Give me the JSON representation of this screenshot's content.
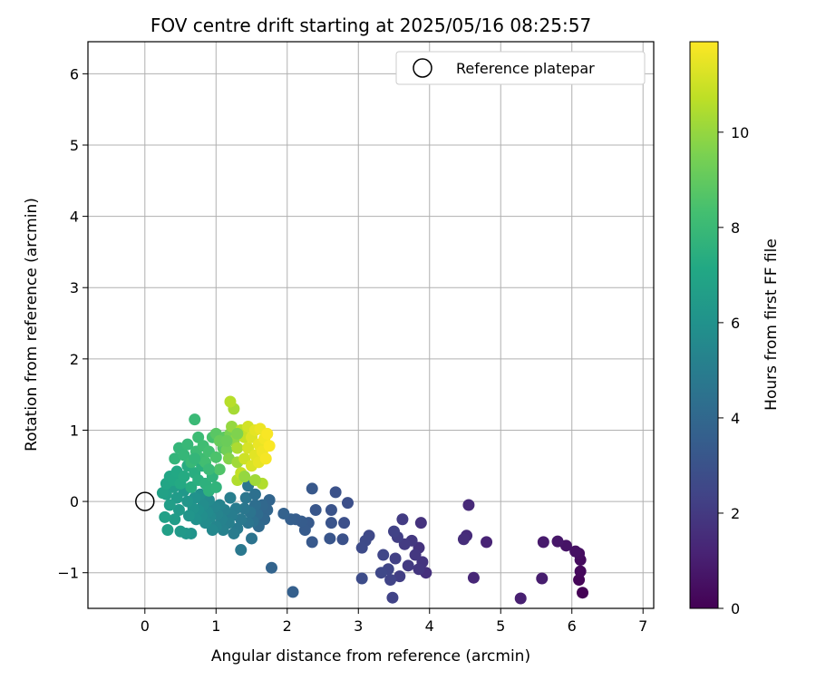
{
  "chart_data": {
    "type": "scatter",
    "title": "FOV centre drift starting at 2025/05/16 08:25:57",
    "xlabel": "Angular distance from reference (arcmin)",
    "ylabel": "Rotation from reference (arcmin)",
    "xlim": [
      -0.8,
      7.15
    ],
    "ylim": [
      -1.5,
      6.45
    ],
    "xticks": [
      0,
      1,
      2,
      3,
      4,
      5,
      6,
      7
    ],
    "yticks": [
      -1,
      0,
      1,
      2,
      3,
      4,
      5,
      6
    ],
    "xtick_labels": [
      "0",
      "1",
      "2",
      "3",
      "4",
      "5",
      "6",
      "7"
    ],
    "ytick_labels": [
      "−1",
      "0",
      "1",
      "2",
      "3",
      "4",
      "5",
      "6"
    ],
    "grid": true,
    "legend": {
      "placement": "top-right",
      "entries": [
        {
          "label": "Reference platepar",
          "marker": "open-circle"
        }
      ]
    },
    "reference_point": {
      "x": 0,
      "y": 0
    },
    "colorbar": {
      "label": "Hours from first FF file",
      "colormap": "viridis",
      "range": [
        0,
        11.9
      ],
      "ticks": [
        0,
        2,
        4,
        6,
        8,
        10
      ],
      "tick_labels": [
        "0",
        "2",
        "4",
        "6",
        "8",
        "10"
      ]
    },
    "points": [
      {
        "x": 6.15,
        "y": -1.28,
        "t": 0.05
      },
      {
        "x": 6.1,
        "y": -1.1,
        "t": 0.15
      },
      {
        "x": 6.12,
        "y": -0.98,
        "t": 0.25
      },
      {
        "x": 6.12,
        "y": -0.82,
        "t": 0.35
      },
      {
        "x": 6.1,
        "y": -0.73,
        "t": 0.45
      },
      {
        "x": 6.05,
        "y": -0.7,
        "t": 0.55
      },
      {
        "x": 5.92,
        "y": -0.62,
        "t": 0.65
      },
      {
        "x": 5.8,
        "y": -0.56,
        "t": 0.75
      },
      {
        "x": 5.6,
        "y": -0.57,
        "t": 0.85
      },
      {
        "x": 5.58,
        "y": -1.08,
        "t": 0.95
      },
      {
        "x": 5.28,
        "y": -1.36,
        "t": 1.05
      },
      {
        "x": 4.8,
        "y": -0.57,
        "t": 1.2
      },
      {
        "x": 4.62,
        "y": -1.07,
        "t": 1.3
      },
      {
        "x": 4.55,
        "y": -0.05,
        "t": 1.4
      },
      {
        "x": 4.52,
        "y": -0.48,
        "t": 1.45
      },
      {
        "x": 4.48,
        "y": -0.53,
        "t": 1.55
      },
      {
        "x": 3.95,
        "y": -1.0,
        "t": 1.65
      },
      {
        "x": 3.88,
        "y": -0.3,
        "t": 1.7
      },
      {
        "x": 3.85,
        "y": -0.65,
        "t": 1.75
      },
      {
        "x": 3.9,
        "y": -0.85,
        "t": 1.8
      },
      {
        "x": 3.85,
        "y": -0.95,
        "t": 1.85
      },
      {
        "x": 3.8,
        "y": -0.75,
        "t": 1.9
      },
      {
        "x": 3.75,
        "y": -0.55,
        "t": 1.95
      },
      {
        "x": 3.7,
        "y": -0.9,
        "t": 2.0
      },
      {
        "x": 3.65,
        "y": -0.6,
        "t": 2.05
      },
      {
        "x": 3.62,
        "y": -0.25,
        "t": 2.1
      },
      {
        "x": 3.58,
        "y": -1.05,
        "t": 2.15
      },
      {
        "x": 3.55,
        "y": -0.5,
        "t": 2.2
      },
      {
        "x": 3.52,
        "y": -0.8,
        "t": 2.25
      },
      {
        "x": 3.5,
        "y": -0.42,
        "t": 2.3
      },
      {
        "x": 3.48,
        "y": -1.35,
        "t": 2.35
      },
      {
        "x": 3.45,
        "y": -1.1,
        "t": 2.4
      },
      {
        "x": 3.42,
        "y": -0.95,
        "t": 2.45
      },
      {
        "x": 3.35,
        "y": -0.75,
        "t": 2.5
      },
      {
        "x": 3.32,
        "y": -1.0,
        "t": 2.55
      },
      {
        "x": 3.15,
        "y": -0.48,
        "t": 2.6
      },
      {
        "x": 3.1,
        "y": -0.55,
        "t": 2.65
      },
      {
        "x": 3.05,
        "y": -0.65,
        "t": 2.7
      },
      {
        "x": 3.05,
        "y": -1.08,
        "t": 2.75
      },
      {
        "x": 2.85,
        "y": -0.02,
        "t": 2.85
      },
      {
        "x": 2.8,
        "y": -0.3,
        "t": 2.9
      },
      {
        "x": 2.78,
        "y": -0.53,
        "t": 2.95
      },
      {
        "x": 2.68,
        "y": 0.13,
        "t": 3.0
      },
      {
        "x": 2.62,
        "y": -0.12,
        "t": 3.05
      },
      {
        "x": 2.62,
        "y": -0.3,
        "t": 3.1
      },
      {
        "x": 2.6,
        "y": -0.52,
        "t": 3.15
      },
      {
        "x": 2.4,
        "y": -0.12,
        "t": 3.2
      },
      {
        "x": 2.35,
        "y": 0.18,
        "t": 3.25
      },
      {
        "x": 2.35,
        "y": -0.57,
        "t": 3.3
      },
      {
        "x": 2.3,
        "y": -0.3,
        "t": 3.35
      },
      {
        "x": 2.25,
        "y": -0.4,
        "t": 3.4
      },
      {
        "x": 2.2,
        "y": -0.28,
        "t": 3.45
      },
      {
        "x": 2.12,
        "y": -0.25,
        "t": 3.5
      },
      {
        "x": 2.05,
        "y": -0.25,
        "t": 3.55
      },
      {
        "x": 2.08,
        "y": -1.27,
        "t": 3.6
      },
      {
        "x": 1.95,
        "y": -0.17,
        "t": 3.7
      },
      {
        "x": 1.78,
        "y": -0.93,
        "t": 3.8
      },
      {
        "x": 1.75,
        "y": 0.02,
        "t": 3.85
      },
      {
        "x": 1.72,
        "y": -0.12,
        "t": 3.9
      },
      {
        "x": 1.68,
        "y": -0.25,
        "t": 3.95
      },
      {
        "x": 1.65,
        "y": -0.05,
        "t": 4.0
      },
      {
        "x": 1.6,
        "y": -0.35,
        "t": 4.1
      },
      {
        "x": 1.58,
        "y": -0.18,
        "t": 4.2
      },
      {
        "x": 1.55,
        "y": -0.05,
        "t": 4.3
      },
      {
        "x": 1.52,
        "y": -0.28,
        "t": 4.4
      },
      {
        "x": 1.5,
        "y": -0.52,
        "t": 4.5
      },
      {
        "x": 1.48,
        "y": -0.15,
        "t": 4.55
      },
      {
        "x": 1.45,
        "y": -0.3,
        "t": 4.6
      },
      {
        "x": 1.42,
        "y": 0.05,
        "t": 4.65
      },
      {
        "x": 1.4,
        "y": -0.1,
        "t": 4.7
      },
      {
        "x": 1.35,
        "y": -0.68,
        "t": 4.75
      },
      {
        "x": 1.35,
        "y": -0.25,
        "t": 4.8
      },
      {
        "x": 1.3,
        "y": -0.38,
        "t": 4.85
      },
      {
        "x": 1.28,
        "y": -0.1,
        "t": 4.9
      },
      {
        "x": 1.25,
        "y": -0.45,
        "t": 4.95
      },
      {
        "x": 1.22,
        "y": -0.2,
        "t": 5.0
      },
      {
        "x": 1.2,
        "y": 0.05,
        "t": 5.05
      },
      {
        "x": 1.18,
        "y": -0.3,
        "t": 5.1
      },
      {
        "x": 1.12,
        "y": -0.12,
        "t": 5.15
      },
      {
        "x": 1.1,
        "y": -0.4,
        "t": 5.2
      },
      {
        "x": 1.08,
        "y": -0.25,
        "t": 5.25
      },
      {
        "x": 1.05,
        "y": -0.05,
        "t": 5.3
      },
      {
        "x": 1.02,
        "y": -0.18,
        "t": 5.35
      },
      {
        "x": 1.0,
        "y": -0.35,
        "t": 5.4
      },
      {
        "x": 0.98,
        "y": -0.08,
        "t": 5.45
      },
      {
        "x": 0.95,
        "y": -0.4,
        "t": 5.5
      },
      {
        "x": 0.92,
        "y": -0.22,
        "t": 5.55
      },
      {
        "x": 0.9,
        "y": 0.02,
        "t": 5.6
      },
      {
        "x": 0.88,
        "y": -0.15,
        "t": 5.65
      },
      {
        "x": 0.85,
        "y": -0.3,
        "t": 5.7
      },
      {
        "x": 0.82,
        "y": -0.05,
        "t": 5.75
      },
      {
        "x": 0.8,
        "y": -0.2,
        "t": 5.8
      },
      {
        "x": 0.78,
        "y": 0.1,
        "t": 5.85
      },
      {
        "x": 0.75,
        "y": -0.12,
        "t": 5.9
      },
      {
        "x": 0.72,
        "y": -0.25,
        "t": 5.95
      },
      {
        "x": 0.7,
        "y": 0.05,
        "t": 6.0
      },
      {
        "x": 0.68,
        "y": -0.1,
        "t": 6.05
      },
      {
        "x": 0.65,
        "y": -0.45,
        "t": 6.1
      },
      {
        "x": 0.62,
        "y": -0.2,
        "t": 6.15
      },
      {
        "x": 0.6,
        "y": 0.0,
        "t": 6.2
      },
      {
        "x": 0.58,
        "y": -0.45,
        "t": 6.25
      },
      {
        "x": 0.55,
        "y": 0.15,
        "t": 6.3
      },
      {
        "x": 0.5,
        "y": -0.42,
        "t": 6.35
      },
      {
        "x": 0.48,
        "y": -0.12,
        "t": 6.4
      },
      {
        "x": 0.45,
        "y": 0.05,
        "t": 6.45
      },
      {
        "x": 0.42,
        "y": -0.25,
        "t": 6.5
      },
      {
        "x": 0.4,
        "y": 0.2,
        "t": 6.55
      },
      {
        "x": 0.35,
        "y": -0.05,
        "t": 6.6
      },
      {
        "x": 0.32,
        "y": -0.4,
        "t": 6.65
      },
      {
        "x": 0.3,
        "y": 0.1,
        "t": 6.7
      },
      {
        "x": 0.28,
        "y": -0.22,
        "t": 6.75
      },
      {
        "x": 0.25,
        "y": 0.12,
        "t": 6.8
      },
      {
        "x": 1.55,
        "y": 0.1,
        "t": 4.4
      },
      {
        "x": 1.45,
        "y": 0.22,
        "t": 4.6
      },
      {
        "x": 0.3,
        "y": 0.25,
        "t": 7.0
      },
      {
        "x": 0.35,
        "y": 0.35,
        "t": 7.05
      },
      {
        "x": 0.4,
        "y": 0.3,
        "t": 7.1
      },
      {
        "x": 0.45,
        "y": 0.42,
        "t": 7.15
      },
      {
        "x": 0.5,
        "y": 0.25,
        "t": 7.2
      },
      {
        "x": 0.55,
        "y": 0.35,
        "t": 7.25
      },
      {
        "x": 0.6,
        "y": 0.5,
        "t": 7.3
      },
      {
        "x": 0.65,
        "y": 0.2,
        "t": 7.35
      },
      {
        "x": 0.7,
        "y": 0.4,
        "t": 7.4
      },
      {
        "x": 0.75,
        "y": 0.3,
        "t": 7.45
      },
      {
        "x": 0.8,
        "y": 0.5,
        "t": 7.5
      },
      {
        "x": 0.85,
        "y": 0.25,
        "t": 7.55
      },
      {
        "x": 0.9,
        "y": 0.15,
        "t": 7.6
      },
      {
        "x": 0.95,
        "y": 0.35,
        "t": 7.65
      },
      {
        "x": 1.0,
        "y": 0.2,
        "t": 7.7
      },
      {
        "x": 0.42,
        "y": 0.6,
        "t": 7.75
      },
      {
        "x": 0.48,
        "y": 0.75,
        "t": 7.8
      },
      {
        "x": 0.55,
        "y": 0.65,
        "t": 7.85
      },
      {
        "x": 0.6,
        "y": 0.8,
        "t": 7.9
      },
      {
        "x": 0.65,
        "y": 0.55,
        "t": 7.95
      },
      {
        "x": 0.7,
        "y": 1.15,
        "t": 8.0
      },
      {
        "x": 0.72,
        "y": 0.7,
        "t": 8.05
      },
      {
        "x": 0.75,
        "y": 0.9,
        "t": 8.1
      },
      {
        "x": 0.8,
        "y": 0.6,
        "t": 8.15
      },
      {
        "x": 0.82,
        "y": 0.78,
        "t": 8.2
      },
      {
        "x": 0.85,
        "y": 0.55,
        "t": 8.25
      },
      {
        "x": 0.9,
        "y": 0.7,
        "t": 8.3
      },
      {
        "x": 0.95,
        "y": 0.9,
        "t": 8.4
      },
      {
        "x": 1.0,
        "y": 0.62,
        "t": 8.5
      },
      {
        "x": 1.05,
        "y": 0.45,
        "t": 8.6
      },
      {
        "x": 1.1,
        "y": 0.75,
        "t": 8.7
      },
      {
        "x": 1.0,
        "y": 0.95,
        "t": 8.8
      },
      {
        "x": 1.12,
        "y": 0.9,
        "t": 8.9
      },
      {
        "x": 1.05,
        "y": 0.85,
        "t": 9.1
      },
      {
        "x": 1.15,
        "y": 0.72,
        "t": 9.3
      },
      {
        "x": 1.2,
        "y": 0.95,
        "t": 9.5
      },
      {
        "x": 1.18,
        "y": 0.6,
        "t": 9.7
      },
      {
        "x": 1.25,
        "y": 0.85,
        "t": 9.9
      },
      {
        "x": 1.22,
        "y": 1.05,
        "t": 10.0
      },
      {
        "x": 1.25,
        "y": 1.3,
        "t": 10.3
      },
      {
        "x": 1.2,
        "y": 1.4,
        "t": 10.6
      },
      {
        "x": 1.3,
        "y": 0.55,
        "t": 10.2
      },
      {
        "x": 1.3,
        "y": 0.75,
        "t": 10.4
      },
      {
        "x": 1.3,
        "y": 0.3,
        "t": 10.5
      },
      {
        "x": 1.35,
        "y": 1.0,
        "t": 10.7
      },
      {
        "x": 1.35,
        "y": 0.4,
        "t": 10.8
      },
      {
        "x": 1.4,
        "y": 0.9,
        "t": 10.9
      },
      {
        "x": 1.4,
        "y": 0.6,
        "t": 11.0
      },
      {
        "x": 1.45,
        "y": 1.05,
        "t": 11.1
      },
      {
        "x": 1.45,
        "y": 0.75,
        "t": 11.2
      },
      {
        "x": 1.5,
        "y": 0.5,
        "t": 11.25
      },
      {
        "x": 1.5,
        "y": 0.9,
        "t": 11.3
      },
      {
        "x": 1.55,
        "y": 0.65,
        "t": 11.4
      },
      {
        "x": 1.55,
        "y": 1.0,
        "t": 11.45
      },
      {
        "x": 1.6,
        "y": 0.55,
        "t": 11.5
      },
      {
        "x": 1.6,
        "y": 0.8,
        "t": 11.55
      },
      {
        "x": 1.62,
        "y": 1.02,
        "t": 11.6
      },
      {
        "x": 1.65,
        "y": 0.7,
        "t": 11.65
      },
      {
        "x": 1.68,
        "y": 0.88,
        "t": 11.7
      },
      {
        "x": 1.7,
        "y": 0.6,
        "t": 11.75
      },
      {
        "x": 1.72,
        "y": 0.95,
        "t": 11.8
      },
      {
        "x": 1.75,
        "y": 0.78,
        "t": 11.85
      },
      {
        "x": 1.65,
        "y": 0.25,
        "t": 10.5
      },
      {
        "x": 1.55,
        "y": 0.3,
        "t": 10.2
      },
      {
        "x": 1.4,
        "y": 0.35,
        "t": 10.0
      },
      {
        "x": 1.3,
        "y": 0.95,
        "t": 9.6
      },
      {
        "x": 1.15,
        "y": 0.85,
        "t": 9.2
      },
      {
        "x": 0.9,
        "y": 0.45,
        "t": 8.0
      },
      {
        "x": 0.7,
        "y": 0.6,
        "t": 7.8
      }
    ]
  }
}
